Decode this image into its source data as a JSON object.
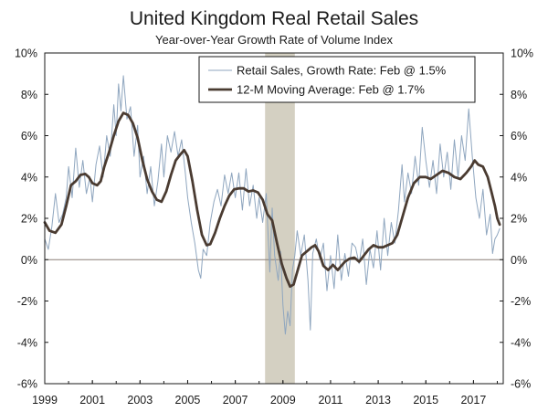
{
  "chart_data": {
    "type": "line",
    "title": "United Kingdom Real Retail Sales",
    "subtitle": "Year-over-Year Growth Rate of Volume Index",
    "xlabel": "",
    "ylabel": "",
    "xlim": [
      1999.0,
      2018.25
    ],
    "ylim": [
      -6,
      10
    ],
    "x_ticks": [
      "1999",
      "2001",
      "2003",
      "2005",
      "2007",
      "2009",
      "2011",
      "2013",
      "2015",
      "2017"
    ],
    "y_ticks_left": [
      "10%",
      "8%",
      "6%",
      "4%",
      "2%",
      "0%",
      "-2%",
      "-4%",
      "-6%"
    ],
    "y_ticks_right": [
      "10%",
      "8%",
      "6%",
      "4%",
      "2%",
      "0%",
      "-2%",
      "-4%",
      "-6%"
    ],
    "recession": {
      "start": 2008.25,
      "end": 2009.5,
      "color": "#d4d0c2"
    },
    "legend_position": "top-right",
    "series": [
      {
        "name": "Retail Sales, Growth Rate: Feb @ 1.5%",
        "color": "#8fa6bf",
        "width": 1,
        "points": [
          [
            1999.0,
            1.0
          ],
          [
            1999.15,
            0.5
          ],
          [
            1999.3,
            1.6
          ],
          [
            1999.45,
            3.2
          ],
          [
            1999.6,
            1.8
          ],
          [
            1999.75,
            2.2
          ],
          [
            1999.9,
            3.0
          ],
          [
            2000.0,
            4.5
          ],
          [
            2000.15,
            3.0
          ],
          [
            2000.3,
            5.4
          ],
          [
            2000.45,
            3.5
          ],
          [
            2000.6,
            4.8
          ],
          [
            2000.75,
            3.2
          ],
          [
            2000.9,
            4.0
          ],
          [
            2001.0,
            2.8
          ],
          [
            2001.15,
            4.6
          ],
          [
            2001.3,
            5.5
          ],
          [
            2001.45,
            4.0
          ],
          [
            2001.6,
            6.0
          ],
          [
            2001.75,
            5.0
          ],
          [
            2001.9,
            7.5
          ],
          [
            2002.0,
            6.0
          ],
          [
            2002.1,
            8.5
          ],
          [
            2002.2,
            7.2
          ],
          [
            2002.3,
            8.9
          ],
          [
            2002.45,
            6.8
          ],
          [
            2002.6,
            7.4
          ],
          [
            2002.75,
            5.0
          ],
          [
            2002.9,
            6.5
          ],
          [
            2003.0,
            4.0
          ],
          [
            2003.15,
            5.0
          ],
          [
            2003.3,
            3.2
          ],
          [
            2003.45,
            4.5
          ],
          [
            2003.6,
            2.6
          ],
          [
            2003.75,
            3.8
          ],
          [
            2003.9,
            5.6
          ],
          [
            2004.0,
            4.0
          ],
          [
            2004.15,
            6.0
          ],
          [
            2004.3,
            5.2
          ],
          [
            2004.45,
            6.2
          ],
          [
            2004.6,
            5.0
          ],
          [
            2004.75,
            5.8
          ],
          [
            2004.9,
            4.2
          ],
          [
            2005.0,
            3.0
          ],
          [
            2005.15,
            1.8
          ],
          [
            2005.3,
            0.8
          ],
          [
            2005.45,
            -0.5
          ],
          [
            2005.55,
            -0.9
          ],
          [
            2005.65,
            0.5
          ],
          [
            2005.8,
            0.2
          ],
          [
            2005.95,
            1.8
          ],
          [
            2006.1,
            2.8
          ],
          [
            2006.25,
            3.4
          ],
          [
            2006.4,
            2.6
          ],
          [
            2006.55,
            4.1
          ],
          [
            2006.7,
            3.2
          ],
          [
            2006.85,
            4.2
          ],
          [
            2007.0,
            3.0
          ],
          [
            2007.15,
            4.2
          ],
          [
            2007.3,
            2.4
          ],
          [
            2007.45,
            4.4
          ],
          [
            2007.6,
            2.6
          ],
          [
            2007.75,
            3.6
          ],
          [
            2007.9,
            2.0
          ],
          [
            2008.0,
            3.0
          ],
          [
            2008.15,
            1.8
          ],
          [
            2008.3,
            3.2
          ],
          [
            2008.45,
            -0.6
          ],
          [
            2008.55,
            2.5
          ],
          [
            2008.65,
            0.2
          ],
          [
            2008.8,
            -1.0
          ],
          [
            2008.9,
            0.4
          ],
          [
            2009.0,
            -2.2
          ],
          [
            2009.1,
            -3.6
          ],
          [
            2009.2,
            -2.5
          ],
          [
            2009.3,
            -3.2
          ],
          [
            2009.4,
            -0.5
          ],
          [
            2009.5,
            0.2
          ],
          [
            2009.6,
            1.4
          ],
          [
            2009.75,
            0.2
          ],
          [
            2009.9,
            1.2
          ],
          [
            2010.05,
            -1.0
          ],
          [
            2010.15,
            -3.4
          ],
          [
            2010.25,
            0.3
          ],
          [
            2010.4,
            1.0
          ],
          [
            2010.55,
            0.0
          ],
          [
            2010.7,
            0.8
          ],
          [
            2010.85,
            -1.5
          ],
          [
            2011.0,
            0.2
          ],
          [
            2011.15,
            -1.4
          ],
          [
            2011.3,
            1.2
          ],
          [
            2011.45,
            -1.0
          ],
          [
            2011.6,
            0.3
          ],
          [
            2011.75,
            -0.8
          ],
          [
            2011.9,
            0.8
          ],
          [
            2012.05,
            0.6
          ],
          [
            2012.2,
            -0.2
          ],
          [
            2012.35,
            1.0
          ],
          [
            2012.5,
            -1.2
          ],
          [
            2012.65,
            0.5
          ],
          [
            2012.8,
            -0.4
          ],
          [
            2012.95,
            1.4
          ],
          [
            2013.1,
            -0.5
          ],
          [
            2013.25,
            2.0
          ],
          [
            2013.4,
            0.2
          ],
          [
            2013.55,
            1.8
          ],
          [
            2013.7,
            0.8
          ],
          [
            2013.85,
            2.4
          ],
          [
            2014.0,
            4.6
          ],
          [
            2014.1,
            2.8
          ],
          [
            2014.25,
            4.2
          ],
          [
            2014.4,
            3.2
          ],
          [
            2014.55,
            5.0
          ],
          [
            2014.7,
            3.6
          ],
          [
            2014.85,
            6.4
          ],
          [
            2015.0,
            4.8
          ],
          [
            2015.15,
            3.5
          ],
          [
            2015.3,
            4.8
          ],
          [
            2015.45,
            3.2
          ],
          [
            2015.6,
            5.6
          ],
          [
            2015.75,
            4.0
          ],
          [
            2015.9,
            5.2
          ],
          [
            2016.05,
            3.4
          ],
          [
            2016.2,
            5.8
          ],
          [
            2016.35,
            4.0
          ],
          [
            2016.5,
            6.0
          ],
          [
            2016.65,
            4.8
          ],
          [
            2016.8,
            7.3
          ],
          [
            2016.95,
            5.0
          ],
          [
            2017.1,
            3.0
          ],
          [
            2017.25,
            2.0
          ],
          [
            2017.4,
            3.4
          ],
          [
            2017.55,
            1.2
          ],
          [
            2017.7,
            2.2
          ],
          [
            2017.8,
            0.3
          ],
          [
            2017.9,
            1.0
          ],
          [
            2018.0,
            1.2
          ],
          [
            2018.1,
            1.5
          ]
        ]
      },
      {
        "name": "12-M Moving Average: Feb @ 1.7%",
        "color": "#4a3b31",
        "width": 2.8,
        "points": [
          [
            1999.0,
            1.8
          ],
          [
            1999.2,
            1.4
          ],
          [
            1999.45,
            1.3
          ],
          [
            1999.7,
            1.7
          ],
          [
            1999.9,
            2.6
          ],
          [
            2000.1,
            3.6
          ],
          [
            2000.3,
            3.8
          ],
          [
            2000.5,
            4.1
          ],
          [
            2000.7,
            4.15
          ],
          [
            2000.85,
            4.0
          ],
          [
            2001.0,
            3.7
          ],
          [
            2001.2,
            3.6
          ],
          [
            2001.35,
            3.8
          ],
          [
            2001.5,
            4.5
          ],
          [
            2001.7,
            5.2
          ],
          [
            2001.9,
            6.0
          ],
          [
            2002.1,
            6.7
          ],
          [
            2002.3,
            7.1
          ],
          [
            2002.5,
            7.0
          ],
          [
            2002.7,
            6.6
          ],
          [
            2002.9,
            5.9
          ],
          [
            2003.1,
            4.8
          ],
          [
            2003.3,
            3.9
          ],
          [
            2003.5,
            3.3
          ],
          [
            2003.7,
            2.9
          ],
          [
            2003.9,
            2.8
          ],
          [
            2004.1,
            3.3
          ],
          [
            2004.3,
            4.1
          ],
          [
            2004.5,
            4.8
          ],
          [
            2004.7,
            5.1
          ],
          [
            2004.85,
            5.3
          ],
          [
            2005.0,
            5.0
          ],
          [
            2005.2,
            3.8
          ],
          [
            2005.4,
            2.4
          ],
          [
            2005.6,
            1.2
          ],
          [
            2005.8,
            0.7
          ],
          [
            2005.95,
            0.75
          ],
          [
            2006.15,
            1.3
          ],
          [
            2006.35,
            2.0
          ],
          [
            2006.55,
            2.6
          ],
          [
            2006.75,
            3.1
          ],
          [
            2006.95,
            3.4
          ],
          [
            2007.15,
            3.45
          ],
          [
            2007.35,
            3.45
          ],
          [
            2007.55,
            3.3
          ],
          [
            2007.75,
            3.35
          ],
          [
            2007.95,
            3.25
          ],
          [
            2008.15,
            2.9
          ],
          [
            2008.35,
            2.2
          ],
          [
            2008.55,
            1.9
          ],
          [
            2008.75,
            0.8
          ],
          [
            2008.95,
            -0.2
          ],
          [
            2009.15,
            -0.9
          ],
          [
            2009.3,
            -1.3
          ],
          [
            2009.45,
            -1.2
          ],
          [
            2009.6,
            -0.6
          ],
          [
            2009.8,
            0.2
          ],
          [
            2010.0,
            0.4
          ],
          [
            2010.2,
            0.6
          ],
          [
            2010.35,
            0.7
          ],
          [
            2010.5,
            0.4
          ],
          [
            2010.7,
            -0.3
          ],
          [
            2010.9,
            -0.5
          ],
          [
            2011.1,
            -0.25
          ],
          [
            2011.3,
            -0.5
          ],
          [
            2011.45,
            -0.3
          ],
          [
            2011.6,
            -0.1
          ],
          [
            2011.8,
            0.05
          ],
          [
            2012.0,
            0.1
          ],
          [
            2012.2,
            -0.1
          ],
          [
            2012.4,
            0.2
          ],
          [
            2012.6,
            0.5
          ],
          [
            2012.8,
            0.7
          ],
          [
            2013.0,
            0.6
          ],
          [
            2013.2,
            0.6
          ],
          [
            2013.4,
            0.7
          ],
          [
            2013.6,
            0.8
          ],
          [
            2013.8,
            1.2
          ],
          [
            2014.0,
            2.0
          ],
          [
            2014.25,
            3.0
          ],
          [
            2014.5,
            3.7
          ],
          [
            2014.75,
            4.0
          ],
          [
            2015.0,
            4.0
          ],
          [
            2015.2,
            3.9
          ],
          [
            2015.45,
            4.1
          ],
          [
            2015.7,
            4.3
          ],
          [
            2015.95,
            4.2
          ],
          [
            2016.2,
            4.0
          ],
          [
            2016.45,
            3.9
          ],
          [
            2016.7,
            4.2
          ],
          [
            2016.9,
            4.5
          ],
          [
            2017.05,
            4.8
          ],
          [
            2017.2,
            4.6
          ],
          [
            2017.4,
            4.5
          ],
          [
            2017.6,
            4.0
          ],
          [
            2017.75,
            3.3
          ],
          [
            2017.9,
            2.6
          ],
          [
            2018.0,
            2.0
          ],
          [
            2018.1,
            1.7
          ]
        ]
      }
    ]
  }
}
